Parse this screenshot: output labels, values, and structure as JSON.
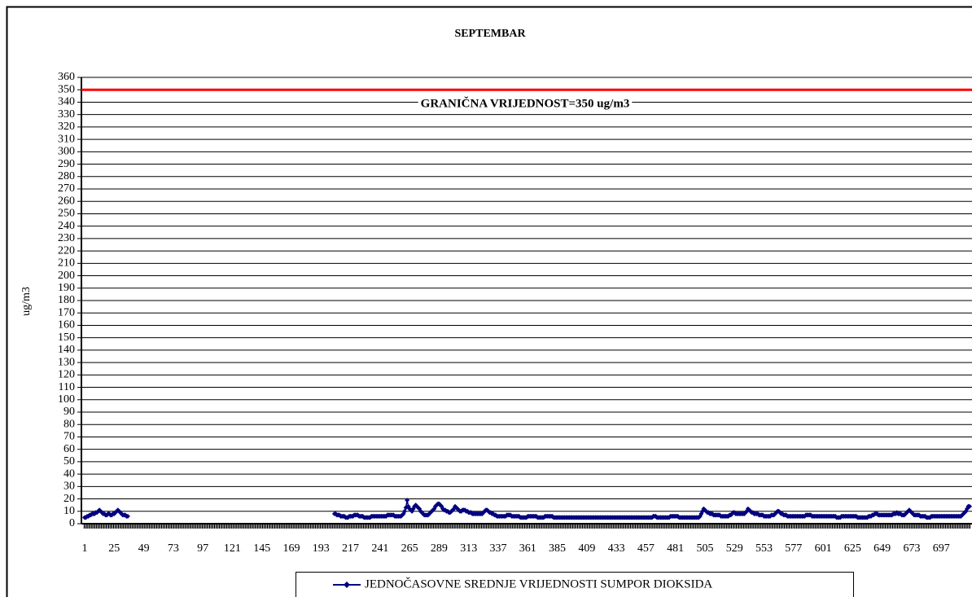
{
  "chart_data": {
    "type": "line",
    "title": "SEPTEMBAR",
    "y_label": "ug/m3",
    "reference_line": {
      "value": 350,
      "label": "GRANIČNA VRIJEDNOST=350 ug/m3",
      "color": "#ff0000"
    },
    "ylim": [
      0,
      360
    ],
    "yticks": [
      0,
      10,
      20,
      30,
      40,
      50,
      60,
      70,
      80,
      90,
      100,
      110,
      120,
      130,
      140,
      150,
      160,
      170,
      180,
      190,
      200,
      210,
      220,
      230,
      240,
      250,
      260,
      270,
      280,
      290,
      300,
      310,
      320,
      330,
      340,
      350,
      360
    ],
    "grid": true,
    "legend": "bottom",
    "categories": [
      1,
      null,
      null,
      null,
      null,
      null,
      null,
      null,
      null,
      null,
      null,
      null,
      null,
      null,
      null,
      null,
      null,
      null,
      null,
      null,
      null,
      null,
      null,
      null,
      25,
      null,
      null,
      null,
      null,
      null,
      null,
      null,
      null,
      null,
      null,
      null,
      null,
      null,
      null,
      null,
      null,
      null,
      null,
      null,
      null,
      null,
      null,
      null,
      49,
      null,
      null,
      null,
      null,
      null,
      null,
      null,
      null,
      null,
      null,
      null,
      null,
      null,
      null,
      null,
      null,
      null,
      null,
      null,
      null,
      null,
      null,
      null,
      73,
      null,
      null,
      null,
      null,
      null,
      null,
      null,
      null,
      null,
      null,
      null,
      null,
      null,
      null,
      null,
      null,
      null,
      null,
      null,
      null,
      null,
      null,
      null,
      97,
      null,
      null,
      null,
      null,
      null,
      null,
      null,
      null,
      null,
      null,
      null,
      null,
      null,
      null,
      null,
      null,
      null,
      null,
      null,
      null,
      null,
      null,
      null,
      121,
      null,
      null,
      null,
      null,
      null,
      null,
      null,
      null,
      null,
      null,
      null,
      null,
      null,
      null,
      null,
      null,
      null,
      null,
      null,
      null,
      null,
      null,
      null,
      145,
      null,
      null,
      null,
      null,
      null,
      null,
      null,
      null,
      null,
      null,
      null,
      null,
      null,
      null,
      null,
      null,
      null,
      null,
      null,
      null,
      null,
      null,
      null,
      169,
      null,
      null,
      null,
      null,
      null,
      null,
      null,
      null,
      null,
      null,
      null,
      null,
      null,
      null,
      null,
      null,
      null,
      null,
      null,
      null,
      null,
      null,
      null,
      193,
      null,
      null,
      null,
      null,
      null,
      null,
      null,
      null,
      null,
      null,
      null,
      null,
      null,
      null,
      null,
      null,
      null,
      null,
      null,
      null,
      null,
      null,
      null,
      217,
      null,
      null,
      null,
      null,
      null,
      null,
      null,
      null,
      null,
      null,
      null,
      null,
      null,
      null,
      null,
      null,
      null,
      null,
      null,
      null,
      null,
      null,
      null,
      241,
      null,
      null,
      null,
      null,
      null,
      null,
      null,
      null,
      null,
      null,
      null,
      null,
      null,
      null,
      null,
      null,
      null,
      null,
      null,
      null,
      null,
      null,
      null,
      265,
      null,
      null,
      null,
      null,
      null,
      null,
      null,
      null,
      null,
      null,
      null,
      null,
      null,
      null,
      null,
      null,
      null,
      null,
      null,
      null,
      null,
      null,
      null,
      289,
      null,
      null,
      null,
      null,
      null,
      null,
      null,
      null,
      null,
      null,
      null,
      null,
      null,
      null,
      null,
      null,
      null,
      null,
      null,
      null,
      null,
      null,
      null,
      313,
      null,
      null,
      null,
      null,
      null,
      null,
      null,
      null,
      null,
      null,
      null,
      null,
      null,
      null,
      null,
      null,
      null,
      null,
      null,
      null,
      null,
      null,
      null,
      337,
      null,
      null,
      null,
      null,
      null,
      null,
      null,
      null,
      null,
      null,
      null,
      null,
      null,
      null,
      null,
      null,
      null,
      null,
      null,
      null,
      null,
      null,
      null,
      361,
      null,
      null,
      null,
      null,
      null,
      null,
      null,
      null,
      null,
      null,
      null,
      null,
      null,
      null,
      null,
      null,
      null,
      null,
      null,
      null,
      null,
      null,
      null,
      385,
      null,
      null,
      null,
      null,
      null,
      null,
      null,
      null,
      null,
      null,
      null,
      null,
      null,
      null,
      null,
      null,
      null,
      null,
      null,
      null,
      null,
      null,
      null,
      409,
      null,
      null,
      null,
      null,
      null,
      null,
      null,
      null,
      null,
      null,
      null,
      null,
      null,
      null,
      null,
      null,
      null,
      null,
      null,
      null,
      null,
      null,
      null,
      433,
      null,
      null,
      null,
      null,
      null,
      null,
      null,
      null,
      null,
      null,
      null,
      null,
      null,
      null,
      null,
      null,
      null,
      null,
      null,
      null,
      null,
      null,
      null,
      457,
      null,
      null,
      null,
      null,
      null,
      null,
      null,
      null,
      null,
      null,
      null,
      null,
      null,
      null,
      null,
      null,
      null,
      null,
      null,
      null,
      null,
      null,
      null,
      481,
      null,
      null,
      null,
      null,
      null,
      null,
      null,
      null,
      null,
      null,
      null,
      null,
      null,
      null,
      null,
      null,
      null,
      null,
      null,
      null,
      null,
      null,
      null,
      505,
      null,
      null,
      null,
      null,
      null,
      null,
      null,
      null,
      null,
      null,
      null,
      null,
      null,
      null,
      null,
      null,
      null,
      null,
      null,
      null,
      null,
      null,
      null,
      529,
      null,
      null,
      null,
      null,
      null,
      null,
      null,
      null,
      null,
      null,
      null,
      null,
      null,
      null,
      null,
      null,
      null,
      null,
      null,
      null,
      null,
      null,
      null,
      553,
      null,
      null,
      null,
      null,
      null,
      null,
      null,
      null,
      null,
      null,
      null,
      null,
      null,
      null,
      null,
      null,
      null,
      null,
      null,
      null,
      null,
      null,
      null,
      577,
      null,
      null,
      null,
      null,
      null,
      null,
      null,
      null,
      null,
      null,
      null,
      null,
      null,
      null,
      null,
      null,
      null,
      null,
      null,
      null,
      null,
      null,
      null,
      601,
      null,
      null,
      null,
      null,
      null,
      null,
      null,
      null,
      null,
      null,
      null,
      null,
      null,
      null,
      null,
      null,
      null,
      null,
      null,
      null,
      null,
      null,
      null,
      625,
      null,
      null,
      null,
      null,
      null,
      null,
      null,
      null,
      null,
      null,
      null,
      null,
      null,
      null,
      null,
      null,
      null,
      null,
      null,
      null,
      null,
      null,
      null,
      649,
      null,
      null,
      null,
      null,
      null,
      null,
      null,
      null,
      null,
      null,
      null,
      null,
      null,
      null,
      null,
      null,
      null,
      null,
      null,
      null,
      null,
      null,
      null,
      673,
      null,
      null,
      null,
      null,
      null,
      null,
      null,
      null,
      null,
      null,
      null,
      null,
      null,
      null,
      null,
      null,
      null,
      null,
      null,
      null,
      null,
      null,
      null,
      697,
      null,
      null,
      null,
      null,
      null,
      null,
      null,
      null,
      null,
      null,
      null,
      null,
      null,
      null,
      null,
      null,
      null,
      null,
      null,
      null,
      null,
      null,
      null
    ],
    "series": [
      {
        "name": "JEDNOČASOVNE SREDNJE VRIJEDNOSTI SUMPOR DIOKSIDA",
        "color": "#000080",
        "values": [
          5,
          5,
          6,
          6,
          7,
          7,
          8,
          8,
          8,
          9,
          9,
          10,
          11,
          10,
          9,
          8,
          8,
          7,
          7,
          8,
          8,
          7,
          7,
          8,
          8,
          9,
          10,
          11,
          10,
          9,
          8,
          7,
          7,
          7,
          6,
          6,
          null,
          null,
          null,
          null,
          null,
          null,
          null,
          null,
          null,
          null,
          null,
          null,
          null,
          null,
          null,
          null,
          null,
          null,
          null,
          null,
          null,
          null,
          null,
          null,
          null,
          null,
          null,
          null,
          null,
          null,
          null,
          null,
          null,
          null,
          null,
          null,
          null,
          null,
          null,
          null,
          null,
          null,
          null,
          null,
          null,
          null,
          null,
          null,
          null,
          null,
          null,
          null,
          null,
          null,
          null,
          null,
          null,
          null,
          null,
          null,
          null,
          null,
          null,
          null,
          null,
          null,
          null,
          null,
          null,
          null,
          null,
          null,
          null,
          null,
          null,
          null,
          null,
          null,
          null,
          null,
          null,
          null,
          null,
          null,
          null,
          null,
          null,
          null,
          null,
          null,
          null,
          null,
          null,
          null,
          null,
          null,
          null,
          null,
          null,
          null,
          null,
          null,
          null,
          null,
          null,
          null,
          null,
          null,
          null,
          null,
          null,
          null,
          null,
          null,
          null,
          null,
          null,
          null,
          null,
          null,
          null,
          null,
          null,
          null,
          null,
          null,
          null,
          null,
          null,
          null,
          null,
          null,
          null,
          null,
          null,
          null,
          null,
          null,
          null,
          null,
          null,
          null,
          null,
          null,
          null,
          null,
          null,
          null,
          null,
          null,
          null,
          null,
          null,
          null,
          null,
          null,
          null,
          null,
          null,
          null,
          null,
          null,
          null,
          null,
          null,
          null,
          null,
          8,
          8,
          7,
          7,
          7,
          6,
          6,
          6,
          6,
          5,
          5,
          5,
          6,
          6,
          6,
          6,
          7,
          7,
          7,
          7,
          6,
          6,
          6,
          6,
          5,
          5,
          5,
          5,
          5,
          5,
          6,
          6,
          6,
          6,
          6,
          6,
          6,
          6,
          6,
          6,
          6,
          6,
          6,
          7,
          7,
          7,
          7,
          7,
          7,
          6,
          6,
          6,
          6,
          6,
          6,
          7,
          8,
          10,
          13,
          19,
          14,
          12,
          11,
          10,
          12,
          14,
          15,
          14,
          13,
          12,
          10,
          9,
          8,
          7,
          7,
          7,
          7,
          8,
          9,
          10,
          11,
          12,
          14,
          15,
          16,
          16,
          15,
          14,
          12,
          11,
          11,
          10,
          10,
          9,
          9,
          10,
          11,
          12,
          14,
          13,
          12,
          11,
          10,
          10,
          11,
          11,
          11,
          10,
          10,
          9,
          9,
          9,
          8,
          8,
          8,
          8,
          8,
          8,
          8,
          8,
          8,
          9,
          10,
          11,
          11,
          10,
          9,
          9,
          8,
          8,
          7,
          7,
          6,
          6,
          6,
          6,
          6,
          6,
          6,
          6,
          7,
          7,
          7,
          7,
          6,
          6,
          6,
          6,
          6,
          6,
          6,
          5,
          5,
          5,
          5,
          5,
          5,
          6,
          6,
          6,
          6,
          6,
          6,
          6,
          6,
          5,
          5,
          5,
          5,
          5,
          5,
          6,
          6,
          6,
          6,
          6,
          6,
          6,
          5,
          5,
          5,
          5,
          5,
          5,
          5,
          5,
          5,
          5,
          5,
          5,
          5,
          5,
          5,
          5,
          5,
          5,
          5,
          5,
          5,
          5,
          5,
          5,
          5,
          5,
          5,
          5,
          5,
          5,
          5,
          5,
          5,
          5,
          5,
          5,
          5,
          5,
          5,
          5,
          5,
          5,
          5,
          5,
          5,
          5,
          5,
          5,
          5,
          5,
          5,
          5,
          5,
          5,
          5,
          5,
          5,
          5,
          5,
          5,
          5,
          5,
          5,
          5,
          5,
          5,
          5,
          5,
          5,
          5,
          5,
          5,
          5,
          5,
          5,
          5,
          5,
          5,
          5,
          5,
          5,
          6,
          6,
          6,
          5,
          5,
          5,
          5,
          5,
          5,
          5,
          5,
          5,
          5,
          5,
          6,
          6,
          6,
          6,
          6,
          6,
          6,
          5,
          5,
          5,
          5,
          5,
          5,
          5,
          5,
          5,
          5,
          5,
          5,
          5,
          5,
          5,
          5,
          5,
          6,
          8,
          10,
          12,
          11,
          10,
          9,
          9,
          8,
          8,
          8,
          7,
          7,
          7,
          7,
          7,
          7,
          6,
          6,
          6,
          6,
          6,
          6,
          6,
          7,
          7,
          8,
          9,
          9,
          8,
          8,
          8,
          8,
          8,
          8,
          8,
          8,
          9,
          10,
          12,
          11,
          10,
          9,
          9,
          8,
          8,
          8,
          8,
          7,
          7,
          7,
          7,
          6,
          6,
          6,
          6,
          6,
          6,
          7,
          7,
          7,
          8,
          9,
          10,
          10,
          9,
          8,
          8,
          7,
          7,
          7,
          6,
          6,
          6,
          6,
          6,
          6,
          6,
          6,
          6,
          6,
          6,
          6,
          6,
          6,
          6,
          7,
          7,
          7,
          7,
          7,
          6,
          6,
          6,
          6,
          6,
          6,
          6,
          6,
          6,
          6,
          6,
          6,
          6,
          6,
          6,
          6,
          6,
          6,
          6,
          6,
          5,
          5,
          5,
          5,
          6,
          6,
          6,
          6,
          6,
          6,
          6,
          6,
          6,
          6,
          6,
          6,
          6,
          5,
          5,
          5,
          5,
          5,
          5,
          5,
          5,
          5,
          6,
          6,
          6,
          7,
          7,
          8,
          8,
          8,
          7,
          7,
          7,
          7,
          7,
          7,
          7,
          7,
          7,
          7,
          7,
          7,
          8,
          8,
          8,
          9,
          8,
          8,
          8,
          7,
          7,
          7,
          8,
          9,
          10,
          11,
          10,
          9,
          8,
          7,
          7,
          7,
          7,
          7,
          6,
          6,
          6,
          6,
          6,
          5,
          5,
          5,
          5,
          6,
          6,
          6,
          6,
          6,
          6,
          6,
          6,
          6,
          6,
          6,
          6,
          6,
          6,
          6,
          6,
          6,
          6,
          6,
          6,
          6,
          6,
          6,
          6,
          6,
          7,
          8,
          9,
          10,
          12,
          14,
          14
        ]
      }
    ]
  }
}
